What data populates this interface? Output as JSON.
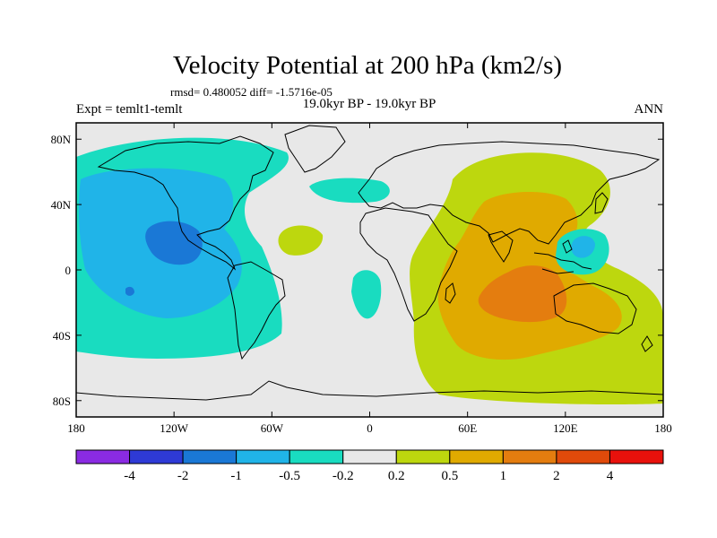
{
  "chart_data": {
    "type": "heatmap",
    "title": "Velocity Potential at 200 hPa (km2/s)",
    "stats_line": "rmsd= 0.480052 diff= -1.5716e-05",
    "subtitle": "19.0kyr BP - 19.0kyr BP",
    "left_label": "Expt = temlt1-temlt",
    "right_label": "ANN",
    "projection": "cylindrical equidistant",
    "xlim": [
      -180,
      180
    ],
    "ylim": [
      -90,
      90
    ],
    "x_ticks": [
      {
        "value": -180,
        "label": "180"
      },
      {
        "value": -120,
        "label": "120W"
      },
      {
        "value": -60,
        "label": "60W"
      },
      {
        "value": 0,
        "label": "0"
      },
      {
        "value": 60,
        "label": "60E"
      },
      {
        "value": 120,
        "label": "120E"
      },
      {
        "value": 180,
        "label": "180"
      }
    ],
    "y_ticks": [
      {
        "value": 80,
        "label": "80N"
      },
      {
        "value": 40,
        "label": "40N"
      },
      {
        "value": 0,
        "label": "0"
      },
      {
        "value": -40,
        "label": "40S"
      },
      {
        "value": -80,
        "label": "80S"
      }
    ],
    "colorbar": {
      "bins": [
        {
          "range": "< -4",
          "color": "#8a2be2"
        },
        {
          "range": "-4 to -2",
          "color": "#2e3ad6"
        },
        {
          "range": "-2 to -1",
          "color": "#1a78d6"
        },
        {
          "range": "-1 to -0.5",
          "color": "#20b4e8"
        },
        {
          "range": "-0.5 to -0.2",
          "color": "#19dcc0"
        },
        {
          "range": "-0.2 to 0.2",
          "color": "#e8e8e8"
        },
        {
          "range": "0.2 to 0.5",
          "color": "#bdd70e"
        },
        {
          "range": "0.5 to 1",
          "color": "#e0aa00"
        },
        {
          "range": "1 to 2",
          "color": "#e47d0f"
        },
        {
          "range": "2 to 4",
          "color": "#e04a0a"
        },
        {
          "range": "> 4",
          "color": "#e8110c"
        }
      ],
      "labels": [
        "-4",
        "-2",
        "-1",
        "-0.5",
        "-0.2",
        "0.2",
        "0.5",
        "1",
        "2",
        "4"
      ]
    },
    "regions": [
      {
        "value_bin": "-0.5 to -0.2",
        "description": "broad Pacific/Americas negative region",
        "lon_range": [
          -180,
          -60
        ],
        "lat_range": [
          -60,
          85
        ]
      },
      {
        "value_bin": "-1 to -0.5",
        "description": "eastern Pacific",
        "lon_range": [
          -175,
          -95
        ],
        "lat_range": [
          -30,
          40
        ]
      },
      {
        "value_bin": "-2 to -1",
        "description": "central-east Pacific minimum",
        "lon_range": [
          -135,
          -100
        ],
        "lat_range": [
          0,
          30
        ]
      },
      {
        "value_bin": "-0.5 to -0.2",
        "description": "North Atlantic",
        "lon_range": [
          -45,
          5
        ],
        "lat_range": [
          40,
          55
        ]
      },
      {
        "value_bin": "0.2 to 0.5",
        "description": "tropical Atlantic",
        "lon_range": [
          -55,
          -25
        ],
        "lat_range": [
          10,
          25
        ]
      },
      {
        "value_bin": "-0.5 to -0.2",
        "description": "South Atlantic",
        "lon_range": [
          -10,
          5
        ],
        "lat_range": [
          -35,
          -5
        ]
      },
      {
        "value_bin": "0.2 to 0.5",
        "description": "Eastern Hemisphere positive region",
        "lon_range": [
          20,
          180
        ],
        "lat_range": [
          -80,
          70
        ]
      },
      {
        "value_bin": "0.5 to 1",
        "description": "Indian Ocean",
        "lon_range": [
          40,
          150
        ],
        "lat_range": [
          -50,
          40
        ]
      },
      {
        "value_bin": "1 to 2",
        "description": "Indian Ocean maximum",
        "lon_range": [
          80,
          115
        ],
        "lat_range": [
          -30,
          -5
        ]
      },
      {
        "value_bin": "-0.5 to -0.2",
        "description": "western Pacific",
        "lon_range": [
          125,
          155
        ],
        "lat_range": [
          -5,
          20
        ]
      },
      {
        "value_bin": "-1 to -0.5",
        "description": "western Pacific core",
        "lon_range": [
          130,
          145
        ],
        "lat_range": [
          5,
          15
        ]
      }
    ]
  }
}
